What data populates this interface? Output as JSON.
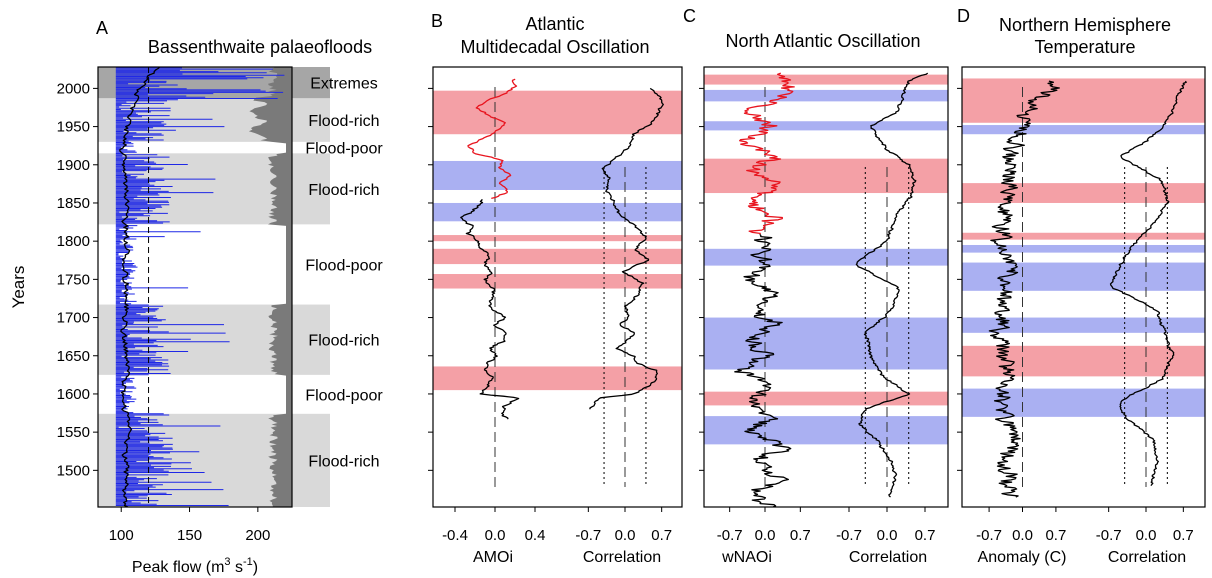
{
  "y_axis": {
    "label": "Years",
    "ticks": [
      "2000",
      "1950",
      "1900",
      "1850",
      "1800",
      "1750",
      "1700",
      "1650",
      "1600",
      "1550",
      "1500"
    ],
    "ylim": [
      1452,
      2028
    ]
  },
  "panel_a": {
    "letter": "A",
    "title": "Bassenthwaite palaeofloods",
    "xlabel_pre": "Peak flow (m",
    "xlabel_sup1": "3",
    "xlabel_mid": " s",
    "xlabel_sup2": "-1",
    "xlabel_post": ")",
    "xticks": [
      "100",
      "150",
      "200"
    ],
    "episodes": [
      {
        "label": "Extremes",
        "y0": 1987,
        "y1": 2028,
        "shade": "#a6a6a6"
      },
      {
        "label": "Flood-rich",
        "y0": 1930,
        "y1": 1987,
        "shade": "#d9d9d9"
      },
      {
        "label": "Flood-poor",
        "y0": 1915,
        "y1": 1930,
        "shade": "none"
      },
      {
        "label": "Flood-rich",
        "y0": 1822,
        "y1": 1915,
        "shade": "#d9d9d9"
      },
      {
        "label": "Flood-poor",
        "y0": 1717,
        "y1": 1822,
        "shade": "none"
      },
      {
        "label": "Flood-rich",
        "y0": 1625,
        "y1": 1717,
        "shade": "#d9d9d9"
      },
      {
        "label": "Flood-poor",
        "y0": 1574,
        "y1": 1625,
        "shade": "none"
      },
      {
        "label": "Flood-rich",
        "y0": 1452,
        "y1": 1574,
        "shade": "#d9d9d9"
      }
    ]
  },
  "panel_b": {
    "letter": "B",
    "title_line1": "Atlantic",
    "title_line2": "Multidecadal Oscillation",
    "xlabel_left": "AMOi",
    "xlabel_right": "Correlation",
    "xticks_left": [
      "-0.4",
      "0.0",
      "0.4"
    ],
    "xticks_right": [
      "-0.7",
      "0.0",
      "0.7"
    ],
    "bands": [
      {
        "y0": 1940,
        "y1": 1997,
        "color": "red"
      },
      {
        "y0": 1867,
        "y1": 1905,
        "color": "blue"
      },
      {
        "y0": 1826,
        "y1": 1850,
        "color": "blue"
      },
      {
        "y0": 1800,
        "y1": 1808,
        "color": "red"
      },
      {
        "y0": 1770,
        "y1": 1790,
        "color": "red"
      },
      {
        "y0": 1738,
        "y1": 1757,
        "color": "red"
      },
      {
        "y0": 1605,
        "y1": 1636,
        "color": "red"
      }
    ]
  },
  "panel_c": {
    "letter": "C",
    "title": "North Atlantic Oscillation",
    "xlabel_left": "wNAOi",
    "xlabel_right": "Correlation",
    "xticks_left": [
      "-0.7",
      "0.0",
      "0.7"
    ],
    "xticks_right": [
      "-0.7",
      "0.0",
      "0.7"
    ],
    "bands": [
      {
        "y0": 2005,
        "y1": 2018,
        "color": "red"
      },
      {
        "y0": 1983,
        "y1": 1998,
        "color": "blue"
      },
      {
        "y0": 1945,
        "y1": 1957,
        "color": "blue"
      },
      {
        "y0": 1863,
        "y1": 1908,
        "color": "red"
      },
      {
        "y0": 1768,
        "y1": 1790,
        "color": "blue"
      },
      {
        "y0": 1632,
        "y1": 1700,
        "color": "blue"
      },
      {
        "y0": 1585,
        "y1": 1603,
        "color": "red"
      },
      {
        "y0": 1534,
        "y1": 1571,
        "color": "blue"
      }
    ]
  },
  "panel_d": {
    "letter": "D",
    "title_line1": "Northern Hemisphere",
    "title_line2": "Temperature",
    "xlabel_left": "Anomaly (C)",
    "xlabel_right": "Correlation",
    "xticks_left": [
      "-0.7",
      "0.0",
      "0.7"
    ],
    "xticks_right": [
      "-0.7",
      "0.0",
      "0.7"
    ],
    "bands": [
      {
        "y0": 1955,
        "y1": 2013,
        "color": "red"
      },
      {
        "y0": 1940,
        "y1": 1952,
        "color": "blue"
      },
      {
        "y0": 1850,
        "y1": 1876,
        "color": "red"
      },
      {
        "y0": 1802,
        "y1": 1811,
        "color": "red"
      },
      {
        "y0": 1785,
        "y1": 1795,
        "color": "blue"
      },
      {
        "y0": 1735,
        "y1": 1772,
        "color": "blue"
      },
      {
        "y0": 1680,
        "y1": 1700,
        "color": "blue"
      },
      {
        "y0": 1623,
        "y1": 1663,
        "color": "red"
      },
      {
        "y0": 1570,
        "y1": 1607,
        "color": "blue"
      }
    ]
  },
  "colors": {
    "red_band": "#f4a0a6",
    "blue_band": "#aab0f2",
    "series_blue": "#1f28e6",
    "series_red": "#e8141e",
    "dark_profile": "#7a7a7a"
  },
  "chart_data": [
    {
      "type": "line",
      "panel": "A",
      "title": "Bassenthwaite palaeofloods",
      "xlabel": "Peak flow (m3 s-1)",
      "ylabel": "Years",
      "xlim": [
        83,
        225
      ],
      "ylim": [
        1452,
        2028
      ],
      "series": [
        {
          "color": "#000000",
          "x": [
            1452,
            1480,
            1500,
            1530,
            1550,
            1575,
            1600,
            1625,
            1650,
            1680,
            1700,
            1730,
            1760,
            1800,
            1830,
            1860,
            1890,
            1920,
            1950,
            1970,
            1990,
            2010,
            2028
          ],
          "y": [
            104,
            103,
            104,
            103,
            106,
            103,
            101,
            103,
            104,
            102,
            103,
            104,
            103,
            104,
            103,
            104,
            102,
            101,
            104,
            108,
            110,
            118,
            128
          ]
        }
      ]
    },
    {
      "type": "line",
      "panel": "B",
      "xlabel": "AMOi",
      "xlim": [
        -0.5,
        0.5
      ],
      "ylim": [
        1452,
        2028
      ],
      "series": [
        {
          "color": "#000000",
          "x": [
            1567,
            1575,
            1585,
            1595,
            1600,
            1610,
            1620,
            1630,
            1640,
            1650,
            1660,
            1670,
            1680,
            1690,
            1700,
            1710,
            1720,
            1730,
            1740,
            1750,
            1760,
            1770,
            1780,
            1790,
            1800,
            1810,
            1820,
            1830,
            1840,
            1850,
            1856
          ],
          "y": [
            0.13,
            0.06,
            0.1,
            0.24,
            -0.15,
            -0.08,
            -0.01,
            -0.1,
            -0.08,
            0.02,
            -0.04,
            0.09,
            0.1,
            -0.02,
            0.1,
            -0.02,
            -0.06,
            0.0,
            -0.04,
            -0.1,
            -0.03,
            -0.1,
            -0.06,
            -0.14,
            -0.18,
            -0.27,
            -0.24,
            -0.34,
            -0.22,
            -0.14,
            -0.12
          ]
        },
        {
          "color": "#e8141e",
          "x": [
            1856,
            1865,
            1875,
            1885,
            1895,
            1905,
            1915,
            1925,
            1935,
            1945,
            1955,
            1965,
            1975,
            1985,
            1995,
            2005,
            2012
          ],
          "y": [
            -0.02,
            0.14,
            0.03,
            0.16,
            0.04,
            0.09,
            -0.19,
            -0.26,
            -0.12,
            0.03,
            0.1,
            -0.07,
            -0.17,
            -0.06,
            0.12,
            0.21,
            0.19
          ]
        },
        {
          "color": "#000000",
          "name": "Correlation",
          "x": [
            1580,
            1595,
            1600,
            1615,
            1630,
            1640,
            1650,
            1660,
            1670,
            1680,
            1690,
            1700,
            1715,
            1730,
            1745,
            1760,
            1775,
            1790,
            1805,
            1820,
            1835,
            1850,
            1865,
            1880,
            1895,
            1910,
            1925,
            1940,
            1955,
            1970,
            1985,
            2000
          ],
          "y": [
            -0.65,
            -0.5,
            0.2,
            0.55,
            0.62,
            0.25,
            0.15,
            -0.15,
            0.05,
            0.18,
            -0.1,
            0.05,
            0.02,
            0.25,
            0.35,
            -0.05,
            0.45,
            0.2,
            0.4,
            0.2,
            -0.1,
            -0.2,
            -0.35,
            -0.3,
            -0.4,
            -0.15,
            0.1,
            0.15,
            0.5,
            0.65,
            0.72,
            0.5
          ]
        }
      ]
    },
    {
      "type": "line",
      "panel": "C",
      "xlabel": "wNAOi",
      "xlim": [
        -1.05,
        1.05
      ],
      "ylim": [
        1452,
        2028
      ],
      "series": [
        {
          "color": "#000000",
          "x": [
            1452,
            1470,
            1490,
            1510,
            1530,
            1550,
            1570,
            1590,
            1610,
            1630,
            1650,
            1670,
            1690,
            1710,
            1730,
            1750,
            1770,
            1790,
            1810
          ],
          "y": [
            0.1,
            -0.25,
            0.3,
            -0.2,
            0.4,
            -0.4,
            0.15,
            -0.3,
            0.2,
            -0.5,
            0.1,
            -0.35,
            0.2,
            -0.15,
            0.25,
            -0.3,
            0.05,
            -0.1,
            0.1
          ]
        },
        {
          "color": "#e8141e",
          "x": [
            1810,
            1830,
            1850,
            1870,
            1890,
            1910,
            1930,
            1950,
            1970,
            1990,
            2010,
            2020
          ],
          "y": [
            -0.2,
            0.2,
            -0.35,
            0.3,
            -0.25,
            0.15,
            -0.4,
            0.1,
            -0.3,
            0.35,
            0.5,
            0.2
          ]
        },
        {
          "color": "#000000",
          "name": "Correlation",
          "x": [
            1465,
            1490,
            1510,
            1540,
            1560,
            1580,
            1600,
            1625,
            1650,
            1680,
            1710,
            1740,
            1770,
            1800,
            1830,
            1860,
            1880,
            1900,
            1920,
            1950,
            1970,
            1990,
            2010,
            2020
          ],
          "y": [
            0.05,
            0.15,
            0.1,
            -0.2,
            -0.5,
            -0.4,
            0.4,
            -0.1,
            -0.3,
            -0.4,
            0.1,
            0.2,
            -0.6,
            0.0,
            0.15,
            0.45,
            0.5,
            0.4,
            0.0,
            -0.3,
            0.2,
            0.3,
            0.4,
            0.75
          ]
        }
      ]
    },
    {
      "type": "line",
      "panel": "D",
      "xlabel": "Anomaly (C)",
      "xlim": [
        -1.1,
        1.1
      ],
      "ylim": [
        1452,
        2028
      ],
      "series": [
        {
          "color": "#000000",
          "x": [
            1465,
            1500,
            1540,
            1580,
            1600,
            1640,
            1680,
            1720,
            1760,
            1800,
            1840,
            1870,
            1900,
            1930,
            1950,
            1970,
            1990,
            2010
          ],
          "y": [
            -0.3,
            -0.35,
            -0.2,
            -0.4,
            -0.45,
            -0.3,
            -0.5,
            -0.35,
            -0.3,
            -0.45,
            -0.4,
            -0.3,
            -0.3,
            -0.1,
            0.0,
            0.1,
            0.4,
            0.75
          ]
        },
        {
          "color": "#000000",
          "name": "Correlation",
          "x": [
            1480,
            1510,
            1540,
            1570,
            1590,
            1620,
            1650,
            1680,
            1710,
            1740,
            1760,
            1790,
            1820,
            1850,
            1880,
            1910,
            1930,
            1950,
            1970,
            1990,
            2010
          ],
          "y": [
            0.1,
            0.2,
            0.15,
            -0.4,
            -0.5,
            0.3,
            0.5,
            0.35,
            0.2,
            -0.65,
            -0.55,
            -0.3,
            0.1,
            0.4,
            0.3,
            -0.5,
            0.0,
            0.3,
            0.5,
            0.6,
            0.75
          ]
        }
      ]
    }
  ]
}
